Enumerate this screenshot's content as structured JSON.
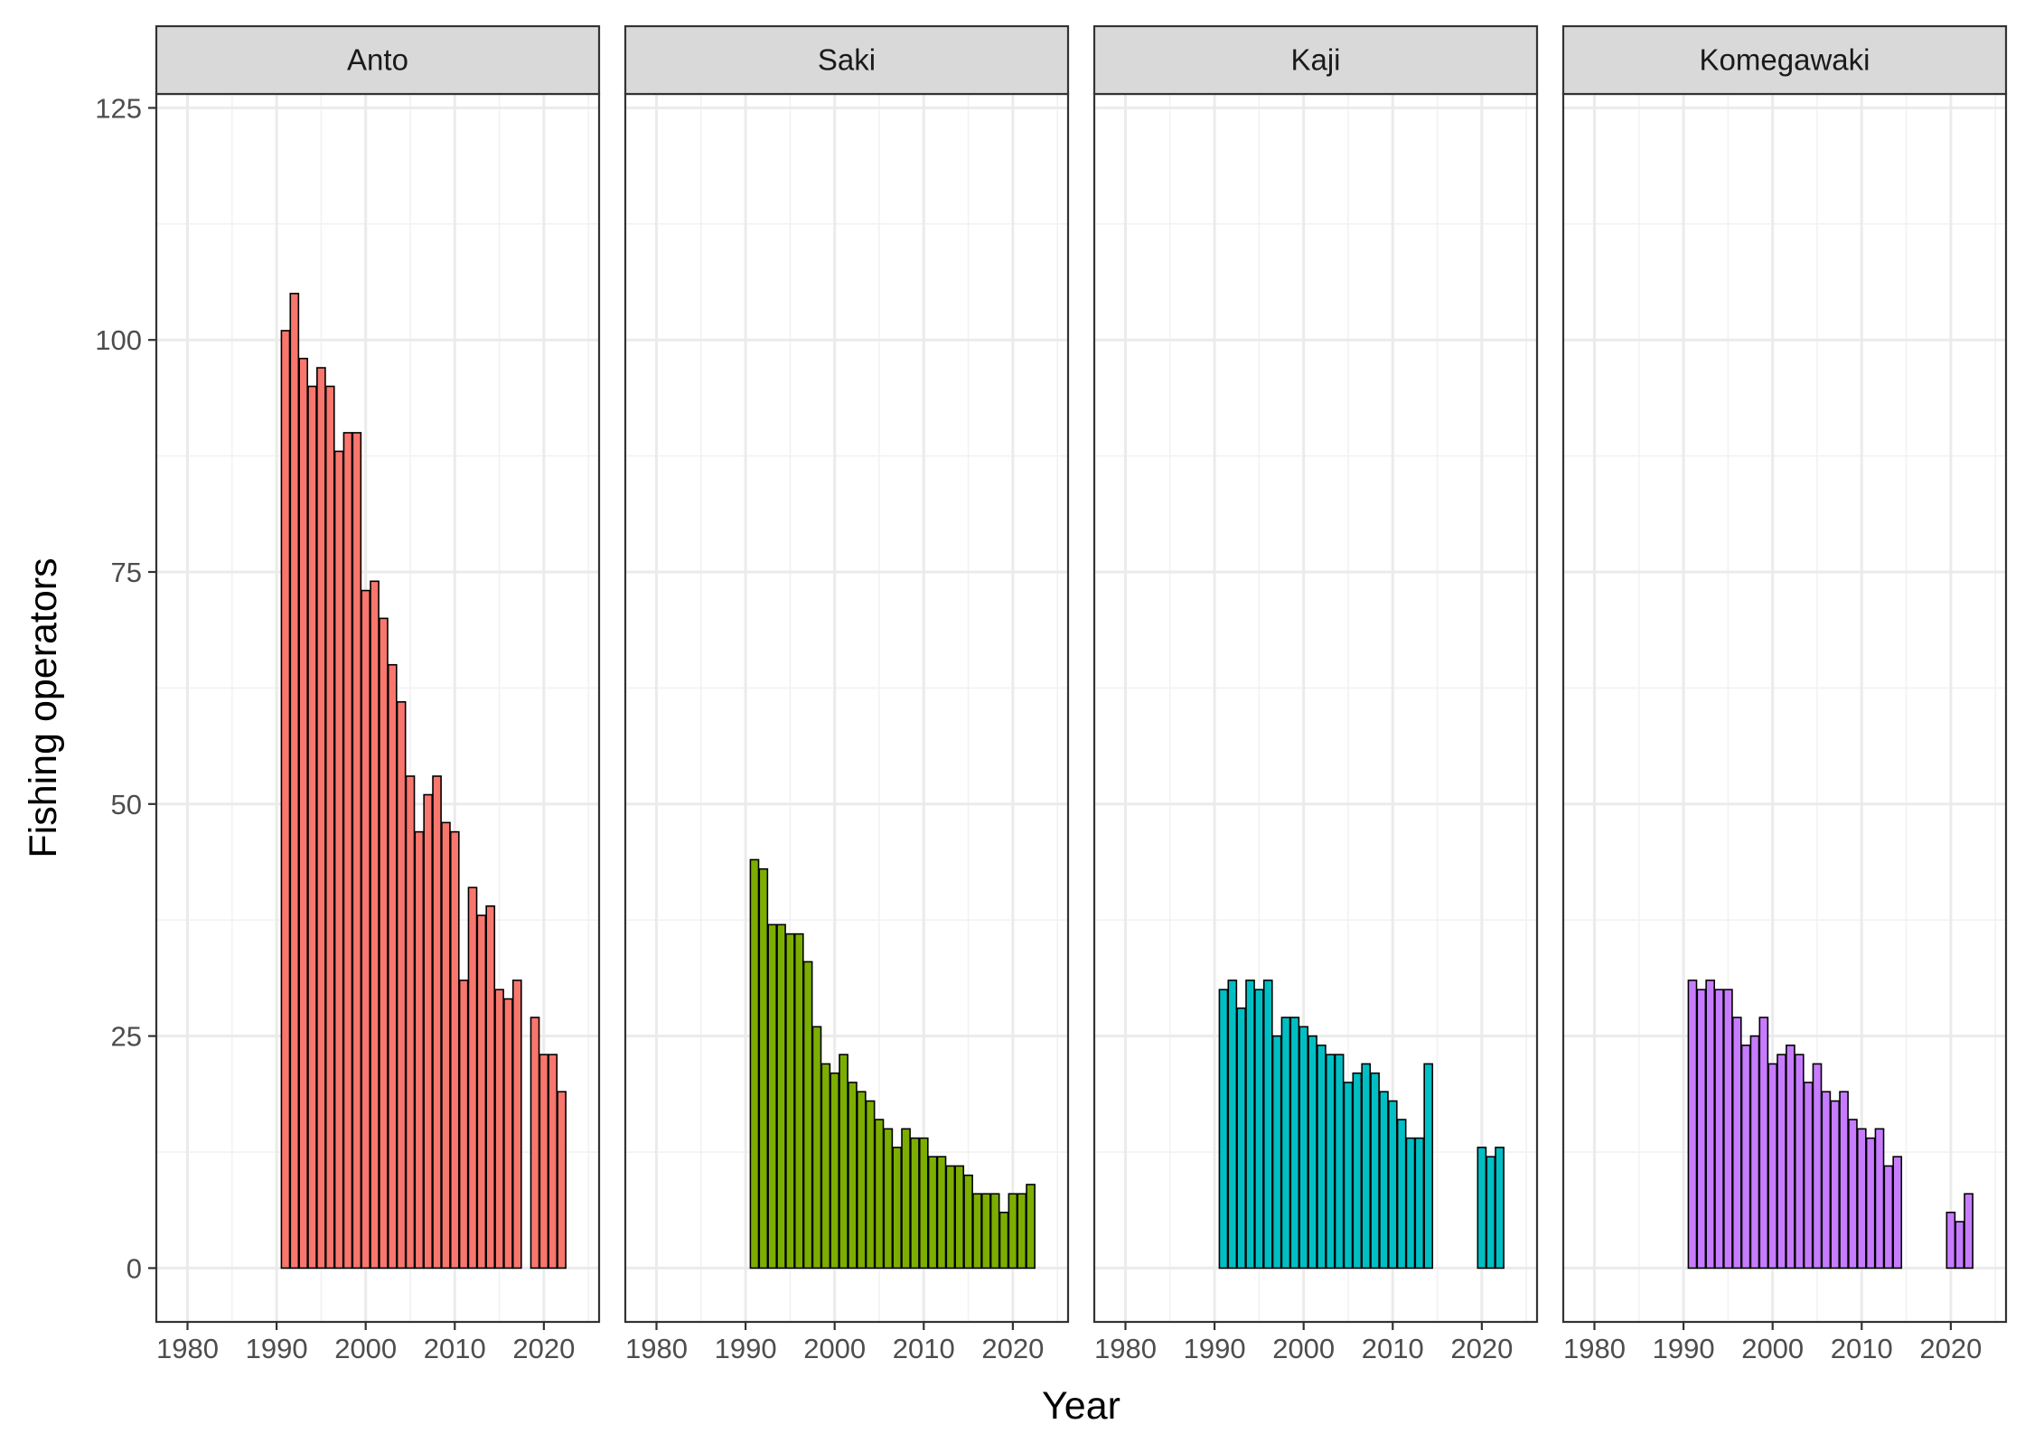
{
  "chart_data": {
    "type": "bar",
    "xlabel": "Year",
    "ylabel": "Fishing operators",
    "xlim": [
      1976.5,
      2026.2
    ],
    "ylim": [
      -5.8,
      126.5
    ],
    "x_ticks": [
      "1980",
      "1990",
      "2000",
      "2010",
      "2020"
    ],
    "x_tick_values": [
      1980,
      1990,
      2000,
      2010,
      2020
    ],
    "y_ticks": [
      "0",
      "25",
      "50",
      "75",
      "100",
      "125"
    ],
    "y_tick_values": [
      0,
      25,
      50,
      75,
      100,
      125
    ],
    "grid": true,
    "legend": "none",
    "panels": [
      {
        "name": "Anto",
        "color": "#F8766D",
        "years": [
          1991,
          1992,
          1993,
          1994,
          1995,
          1996,
          1997,
          1998,
          1999,
          2000,
          2001,
          2002,
          2003,
          2004,
          2005,
          2006,
          2007,
          2008,
          2009,
          2010,
          2011,
          2012,
          2013,
          2014,
          2015,
          2016,
          2017,
          2019,
          2020,
          2021,
          2022
        ],
        "values": [
          101,
          105,
          98,
          95,
          97,
          95,
          88,
          90,
          90,
          73,
          74,
          70,
          65,
          61,
          53,
          47,
          51,
          53,
          48,
          47,
          31,
          41,
          38,
          39,
          30,
          29,
          31,
          27,
          23,
          23,
          19
        ]
      },
      {
        "name": "Saki",
        "color": "#7CAE00",
        "years": [
          1991,
          1992,
          1993,
          1994,
          1995,
          1996,
          1997,
          1998,
          1999,
          2000,
          2001,
          2002,
          2003,
          2004,
          2005,
          2006,
          2007,
          2008,
          2009,
          2010,
          2011,
          2012,
          2013,
          2014,
          2015,
          2016,
          2017,
          2018,
          2019,
          2020,
          2021,
          2022
        ],
        "values": [
          44,
          43,
          37,
          37,
          36,
          36,
          33,
          26,
          22,
          21,
          23,
          20,
          19,
          18,
          16,
          15,
          13,
          15,
          14,
          14,
          12,
          12,
          11,
          11,
          10,
          8,
          8,
          8,
          6,
          8,
          8,
          9
        ]
      },
      {
        "name": "Kaji",
        "color": "#00BFC4",
        "years": [
          1991,
          1992,
          1993,
          1994,
          1995,
          1996,
          1997,
          1998,
          1999,
          2000,
          2001,
          2002,
          2003,
          2004,
          2005,
          2006,
          2007,
          2008,
          2009,
          2010,
          2011,
          2012,
          2013,
          2014,
          2020,
          2021,
          2022
        ],
        "values": [
          30,
          31,
          28,
          31,
          30,
          31,
          25,
          27,
          27,
          26,
          25,
          24,
          23,
          23,
          20,
          21,
          22,
          21,
          19,
          18,
          16,
          14,
          14,
          22,
          13,
          12,
          13
        ]
      },
      {
        "name": "Komegawaki",
        "color": "#C77CFF",
        "years": [
          1991,
          1992,
          1993,
          1994,
          1995,
          1996,
          1997,
          1998,
          1999,
          2000,
          2001,
          2002,
          2003,
          2004,
          2005,
          2006,
          2007,
          2008,
          2009,
          2010,
          2011,
          2012,
          2013,
          2014,
          2020,
          2021,
          2022
        ],
        "values": [
          31,
          30,
          31,
          30,
          30,
          27,
          24,
          25,
          27,
          22,
          23,
          24,
          23,
          20,
          22,
          19,
          18,
          19,
          16,
          15,
          14,
          15,
          11,
          12,
          6,
          5,
          8
        ]
      }
    ]
  }
}
